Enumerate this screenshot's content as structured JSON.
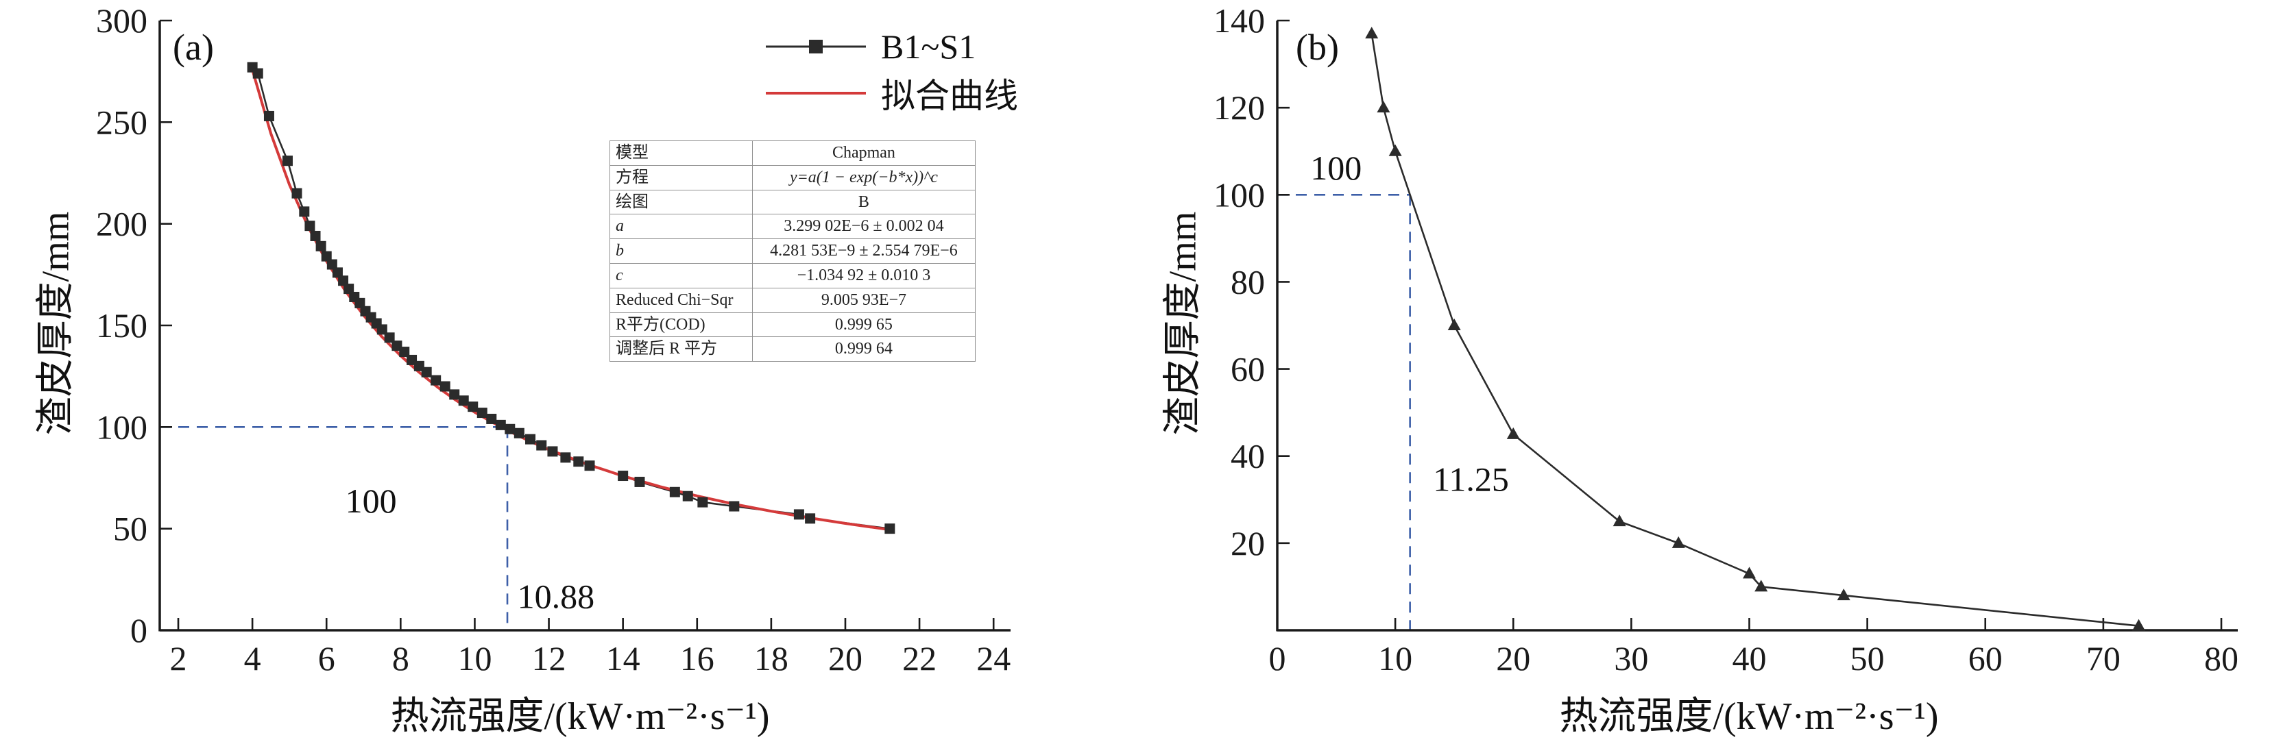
{
  "figure": {
    "background": "#ffffff",
    "ink_color": "#1a1a1a",
    "dash_color": "#3d5fa8",
    "series_color": "#2b2b2b",
    "fit_color": "#d43a3a"
  },
  "chart_data": [
    {
      "id": "a",
      "type": "scatter",
      "panel_label": "(a)",
      "xlabel": "热流强度/(kW·m⁻²·s⁻¹)",
      "ylabel": "渣皮厚度/mm",
      "xlim": [
        1.5,
        24.2
      ],
      "ylim": [
        0,
        300
      ],
      "xticks": [
        2,
        4,
        6,
        8,
        10,
        12,
        14,
        16,
        18,
        20,
        22,
        24
      ],
      "yticks": [
        0,
        50,
        100,
        150,
        200,
        250,
        300
      ],
      "grid": false,
      "legend_position": "top-right",
      "legend": [
        {
          "label": "B1~S1",
          "marker": "square",
          "color": "#2b2b2b"
        },
        {
          "label": "拟合曲线",
          "marker": "line",
          "color": "#d43a3a"
        }
      ],
      "series": [
        {
          "name": "B1~S1",
          "kind": "scatter-line",
          "marker": "square",
          "color": "#2b2b2b",
          "points": [
            [
              4.0,
              277
            ],
            [
              4.15,
              274
            ],
            [
              4.45,
              253
            ],
            [
              4.95,
              231
            ],
            [
              5.2,
              215
            ],
            [
              5.4,
              206
            ],
            [
              5.55,
              199
            ],
            [
              5.7,
              194
            ],
            [
              5.85,
              189
            ],
            [
              6.0,
              184
            ],
            [
              6.15,
              180
            ],
            [
              6.3,
              176
            ],
            [
              6.45,
              172
            ],
            [
              6.6,
              168
            ],
            [
              6.75,
              164
            ],
            [
              6.9,
              161
            ],
            [
              7.05,
              157
            ],
            [
              7.2,
              154
            ],
            [
              7.35,
              151
            ],
            [
              7.5,
              148
            ],
            [
              7.7,
              144
            ],
            [
              7.9,
              140
            ],
            [
              8.1,
              137
            ],
            [
              8.3,
              133
            ],
            [
              8.5,
              130
            ],
            [
              8.7,
              127
            ],
            [
              8.95,
              123
            ],
            [
              9.2,
              120
            ],
            [
              9.45,
              116
            ],
            [
              9.7,
              113
            ],
            [
              9.95,
              110
            ],
            [
              10.2,
              107
            ],
            [
              10.45,
              104
            ],
            [
              10.7,
              101
            ],
            [
              10.95,
              99
            ],
            [
              11.2,
              97
            ],
            [
              11.5,
              94
            ],
            [
              11.8,
              91
            ],
            [
              12.1,
              88
            ],
            [
              12.45,
              85
            ],
            [
              12.8,
              83
            ],
            [
              13.1,
              81
            ],
            [
              14.0,
              76
            ],
            [
              14.45,
              73
            ],
            [
              15.4,
              68
            ],
            [
              15.75,
              66
            ],
            [
              16.15,
              63
            ],
            [
              17.0,
              61
            ],
            [
              18.75,
              57
            ],
            [
              19.05,
              55
            ],
            [
              21.2,
              50
            ]
          ]
        },
        {
          "name": "拟合曲线",
          "kind": "line",
          "marker": "none",
          "color": "#d43a3a",
          "points": [
            [
              4.0,
              275.8
            ],
            [
              4.5,
              244.3
            ],
            [
              5.0,
              219.2
            ],
            [
              5.5,
              198.7
            ],
            [
              6.0,
              181.6
            ],
            [
              6.5,
              167.2
            ],
            [
              7.0,
              155.0
            ],
            [
              7.5,
              144.3
            ],
            [
              8.0,
              135.1
            ],
            [
              8.5,
              126.9
            ],
            [
              9.0,
              119.6
            ],
            [
              9.5,
              113.1
            ],
            [
              10.0,
              107.3
            ],
            [
              10.5,
              102.1
            ],
            [
              11.0,
              97.3
            ],
            [
              11.5,
              92.9
            ],
            [
              12.0,
              88.9
            ],
            [
              13.0,
              81.9
            ],
            [
              14.0,
              75.9
            ],
            [
              15.0,
              70.7
            ],
            [
              16.0,
              66.1
            ],
            [
              17.0,
              62.1
            ],
            [
              18.0,
              58.6
            ],
            [
              19.0,
              55.4
            ],
            [
              20.0,
              52.6
            ],
            [
              21.0,
              50.0
            ],
            [
              21.3,
              49.2
            ]
          ]
        }
      ],
      "reference_lines": {
        "h": 100,
        "v": 10.88,
        "color": "#3d5fa8"
      },
      "annotations": [
        {
          "text": "100",
          "x": 7.2,
          "y": 58,
          "anchor": "middle"
        },
        {
          "text": "10.88",
          "x": 11.15,
          "y": 11,
          "anchor": "start"
        }
      ],
      "fit_table": {
        "rows": [
          {
            "label": "模型",
            "value": "Chapman"
          },
          {
            "label": "方程",
            "value": "y=a(1 − exp(−b*x))^c"
          },
          {
            "label": "绘图",
            "value": "B"
          },
          {
            "label": "a",
            "value": "3.299 02E−6 ± 0.002 04"
          },
          {
            "label": "b",
            "value": "4.281 53E−9 ± 2.554 79E−6"
          },
          {
            "label": "c",
            "value": "−1.034 92 ± 0.010 3"
          },
          {
            "label": "Reduced Chi−Sqr",
            "value": "9.005 93E−7"
          },
          {
            "label": "R平方(COD)",
            "value": "0.999 65"
          },
          {
            "label": "调整后 R 平方",
            "value": "0.999 64"
          }
        ]
      }
    },
    {
      "id": "b",
      "type": "scatter",
      "panel_label": "(b)",
      "xlabel": "热流强度/(kW·m⁻²·s⁻¹)",
      "ylabel": "渣皮厚度/mm",
      "xlim": [
        0,
        80
      ],
      "ylim": [
        0,
        140
      ],
      "xticks": [
        0,
        10,
        20,
        30,
        40,
        50,
        60,
        70,
        80
      ],
      "yticks": [
        20,
        40,
        60,
        80,
        100,
        120,
        140
      ],
      "grid": false,
      "series": [
        {
          "name": "渣皮厚度",
          "kind": "scatter-line",
          "marker": "triangle",
          "color": "#2b2b2b",
          "points": [
            [
              8,
              137
            ],
            [
              9,
              120
            ],
            [
              10,
              110
            ],
            [
              15,
              70
            ],
            [
              20,
              45
            ],
            [
              29,
              25
            ],
            [
              34,
              20
            ],
            [
              40,
              13
            ],
            [
              41,
              10
            ],
            [
              48,
              8
            ],
            [
              73,
              1
            ]
          ]
        }
      ],
      "reference_lines": {
        "h": 100,
        "v": 11.25,
        "color": "#3d5fa8"
      },
      "annotations": [
        {
          "text": "100",
          "x": 2.8,
          "y": 103.5,
          "anchor": "start"
        },
        {
          "text": "11.25",
          "x": 13.2,
          "y": 32,
          "anchor": "start"
        }
      ]
    }
  ]
}
